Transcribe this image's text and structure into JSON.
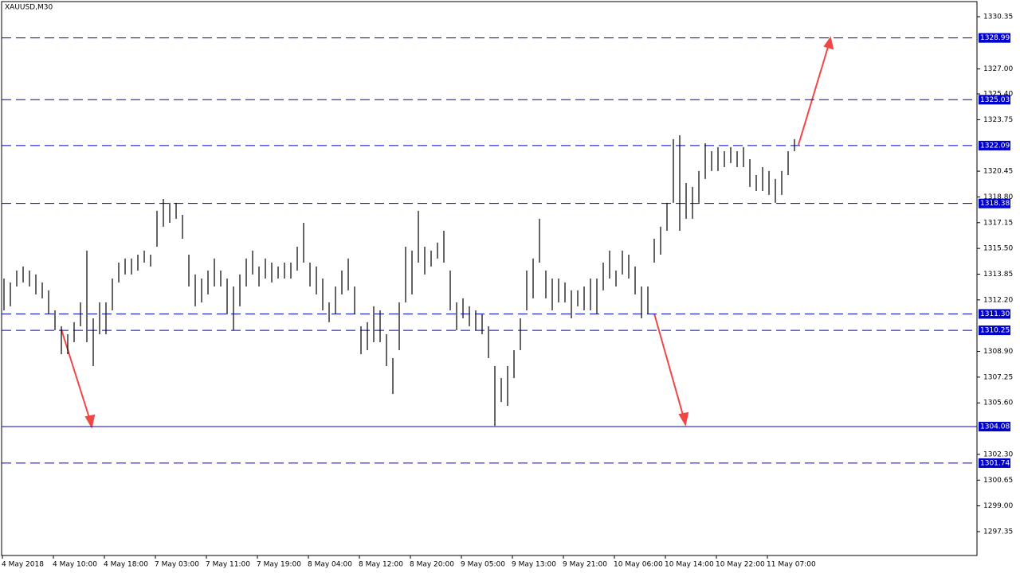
{
  "chart_data": {
    "type": "bar-range",
    "title": "XAUUSD,M30",
    "categories": [
      "4 May 2018",
      null,
      null,
      null,
      null,
      null,
      null,
      null,
      "4 May 10:00",
      null,
      null,
      null,
      null,
      null,
      null,
      null,
      "4 May 18:00",
      null,
      null,
      null,
      null,
      null,
      null,
      null,
      "7 May 03:00",
      null,
      null,
      null,
      null,
      null,
      null,
      null,
      "7 May 11:00",
      null,
      null,
      null,
      null,
      null,
      null,
      null,
      "7 May 19:00",
      null,
      null,
      null,
      null,
      null,
      null,
      null,
      "8 May 04:00",
      null,
      null,
      null,
      null,
      null,
      null,
      null,
      "8 May 12:00",
      null,
      null,
      null,
      null,
      null,
      null,
      null,
      "8 May 20:00",
      null,
      null,
      null,
      null,
      null,
      null,
      null,
      "9 May 05:00",
      null,
      null,
      null,
      null,
      null,
      null,
      null,
      "9 May 13:00",
      null,
      null,
      null,
      null,
      null,
      null,
      null,
      "9 May 21:00",
      null,
      null,
      null,
      null,
      null,
      null,
      null,
      "10 May 06:00",
      null,
      null,
      null,
      null,
      null,
      null,
      null,
      "10 May 14:00",
      null,
      null,
      null,
      null,
      null,
      null,
      null,
      "10 May 22:00",
      null,
      null,
      null,
      null,
      null,
      null,
      null,
      "11 May 07:00",
      null,
      null,
      null,
      null
    ],
    "high": [
      1313.57,
      1313.32,
      1314.08,
      1314.34,
      1314.08,
      1313.83,
      1313.32,
      1312.81,
      1311.53,
      1310.51,
      1310.0,
      1310.77,
      1312.04,
      1315.36,
      1311.02,
      1312.04,
      1312.04,
      1313.57,
      1314.59,
      1314.85,
      1314.85,
      1315.1,
      1315.36,
      1315.1,
      1317.91,
      1318.67,
      1318.42,
      1318.42,
      1317.65,
      1315.1,
      1313.83,
      1313.57,
      1314.08,
      1314.85,
      1314.08,
      1313.57,
      1313.06,
      1313.83,
      1314.85,
      1315.36,
      1314.34,
      1314.85,
      1314.59,
      1314.34,
      1314.59,
      1314.59,
      1315.61,
      1317.14,
      1314.59,
      1314.34,
      1313.57,
      1312.04,
      1313.06,
      1314.08,
      1314.85,
      1313.06,
      1310.51,
      1310.77,
      1311.79,
      1311.53,
      1310.0,
      1308.47,
      1312.04,
      1315.61,
      1315.36,
      1317.91,
      1315.61,
      1315.36,
      1315.87,
      1316.63,
      1314.08,
      1312.04,
      1312.3,
      1311.79,
      1311.53,
      1311.27,
      1310.51,
      1307.96,
      1307.19,
      1307.96,
      1308.98,
      1311.02,
      1314.08,
      1314.85,
      1317.4,
      1314.08,
      1313.57,
      1313.57,
      1313.32,
      1312.81,
      1312.81,
      1313.06,
      1313.57,
      1313.57,
      1314.59,
      1315.36,
      1314.08,
      1315.36,
      1315.1,
      1314.34,
      1313.06,
      1313.06,
      1316.12,
      1316.89,
      1318.42,
      1322.5,
      1322.75,
      1319.69,
      1319.44,
      1320.46,
      1322.24,
      1321.73,
      1321.99,
      1321.73,
      1321.99,
      1321.73,
      1321.99,
      1321.22,
      1320.2,
      1320.71,
      1320.46,
      1319.95,
      1320.46,
      1321.73,
      1322.5
    ],
    "low": [
      1311.53,
      1311.79,
      1313.06,
      1313.32,
      1313.06,
      1312.55,
      1312.3,
      1311.27,
      1310.26,
      1308.72,
      1308.72,
      1309.49,
      1310.51,
      1309.49,
      1307.96,
      1310.0,
      1310.0,
      1311.53,
      1313.32,
      1313.83,
      1313.83,
      1314.08,
      1314.59,
      1314.34,
      1315.61,
      1316.89,
      1317.14,
      1317.4,
      1316.12,
      1313.06,
      1311.79,
      1312.04,
      1312.55,
      1313.06,
      1313.06,
      1311.27,
      1310.26,
      1311.79,
      1313.06,
      1313.83,
      1313.06,
      1313.57,
      1313.32,
      1313.57,
      1313.57,
      1313.57,
      1314.08,
      1314.59,
      1313.06,
      1312.55,
      1311.53,
      1310.77,
      1311.27,
      1312.55,
      1312.81,
      1311.27,
      1308.72,
      1308.98,
      1309.49,
      1309.49,
      1307.96,
      1306.17,
      1308.98,
      1312.04,
      1312.55,
      1314.59,
      1313.83,
      1314.34,
      1314.85,
      1314.59,
      1311.53,
      1310.26,
      1311.02,
      1310.51,
      1310.26,
      1310.0,
      1308.47,
      1304.13,
      1305.66,
      1305.41,
      1307.19,
      1308.98,
      1311.53,
      1312.3,
      1314.59,
      1312.3,
      1311.53,
      1312.04,
      1312.04,
      1311.02,
      1311.79,
      1311.53,
      1311.53,
      1311.27,
      1312.81,
      1313.57,
      1313.06,
      1313.83,
      1313.57,
      1312.55,
      1311.02,
      1311.27,
      1314.59,
      1315.1,
      1316.63,
      1318.42,
      1316.63,
      1317.4,
      1317.4,
      1318.42,
      1319.95,
      1320.46,
      1320.46,
      1320.71,
      1320.97,
      1320.71,
      1320.71,
      1319.44,
      1319.18,
      1319.18,
      1318.93,
      1318.42,
      1318.93,
      1320.2,
      1321.73
    ],
    "color": "#000000",
    "ylim": [
      1295.82,
      1331.42
    ],
    "yticks": [
      {
        "value": 1330.35,
        "label": "1330.35"
      },
      {
        "value": 1327.0,
        "label": "1327.00"
      },
      {
        "value": 1325.4,
        "label": "1325.40"
      },
      {
        "value": 1323.75,
        "label": "1323.75"
      },
      {
        "value": 1320.45,
        "label": "1320.45"
      },
      {
        "value": 1318.8,
        "label": "1318.80"
      },
      {
        "value": 1317.15,
        "label": "1317.15"
      },
      {
        "value": 1315.5,
        "label": "1315.50"
      },
      {
        "value": 1313.85,
        "label": "1313.85"
      },
      {
        "value": 1312.2,
        "label": "1312.20"
      },
      {
        "value": 1308.9,
        "label": "1308.90"
      },
      {
        "value": 1307.25,
        "label": "1307.25"
      },
      {
        "value": 1305.6,
        "label": "1305.60"
      },
      {
        "value": 1302.3,
        "label": "1302.30"
      },
      {
        "value": 1300.65,
        "label": "1300.65"
      },
      {
        "value": 1299.0,
        "label": "1299.00"
      },
      {
        "value": 1297.35,
        "label": "1297.35"
      }
    ],
    "levels": [
      1328.99,
      1325.03,
      1322.09,
      1318.38,
      1311.3,
      1310.25,
      1304.08,
      1301.74
    ],
    "level_labels": [
      "1328.99",
      "1325.03",
      "1322.09",
      "1318.38",
      "1311.30",
      "1310.25",
      "1304.08",
      "1301.74"
    ],
    "level_styles": [
      "dashed",
      "dashed",
      "dashed",
      "dashed",
      "dashed",
      "dashed",
      "solid",
      "dashed"
    ],
    "level_color": "#0000cc"
  }
}
